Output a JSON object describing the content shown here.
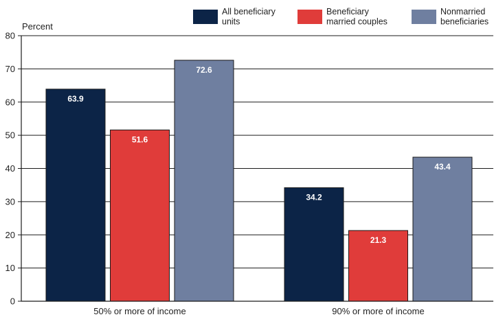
{
  "chart_data": {
    "type": "bar",
    "ylabel": "Percent",
    "ylim": [
      0,
      80
    ],
    "yticks": [
      0,
      10,
      20,
      30,
      40,
      50,
      60,
      70,
      80
    ],
    "grid": true,
    "legend_position": "top-right",
    "categories": [
      "50% or more of income",
      "90% or more of income"
    ],
    "series": [
      {
        "name": "All beneficiary units",
        "name_lines": [
          "All beneficiary",
          "units"
        ],
        "color": "#0c2447",
        "values": [
          63.9,
          34.2
        ]
      },
      {
        "name": "Beneficiary married couples",
        "name_lines": [
          "Beneficiary",
          "married couples"
        ],
        "color": "#e03c3a",
        "values": [
          51.6,
          21.3
        ]
      },
      {
        "name": "Nonmarried beneficiaries",
        "name_lines": [
          "Nonmarried",
          "beneficiaries"
        ],
        "color": "#6f7fa0",
        "values": [
          72.6,
          43.4
        ]
      }
    ],
    "data_labels": [
      [
        "63.9",
        "34.2"
      ],
      [
        "51.6",
        "21.3"
      ],
      [
        "72.6",
        "43.4"
      ]
    ]
  }
}
